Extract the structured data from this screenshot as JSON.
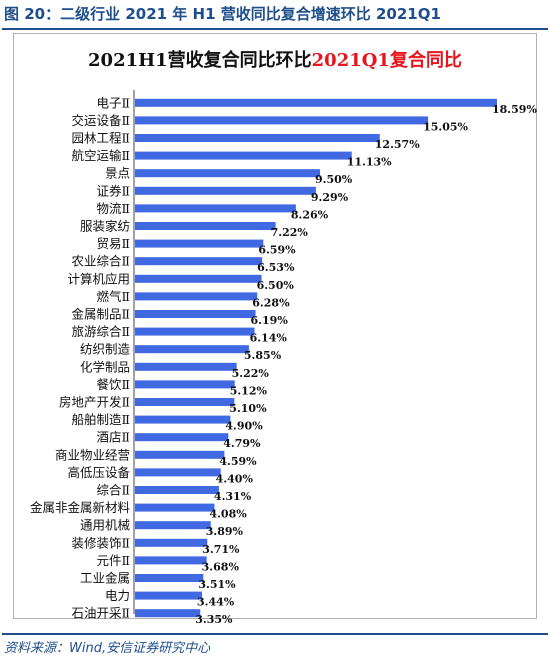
{
  "figure_heading": "图 20：二级行业 2021 年 H1 营收同比复合增速环比 2021Q1",
  "source_note": "资料来源：Wind,安信证券研究中心",
  "colors": {
    "bar": "#4169e1",
    "heading": "#1f4e8c",
    "title_highlight": "#e8141c"
  },
  "chart_data": {
    "type": "bar",
    "orientation": "horizontal",
    "title_part1": "2021H1营收复合同比环比",
    "title_part2": "2021Q1复合同比",
    "categories": [
      "电子Ⅱ",
      "交运设备Ⅱ",
      "园林工程Ⅱ",
      "航空运输Ⅱ",
      "景点",
      "证券Ⅱ",
      "物流Ⅱ",
      "服装家纺",
      "贸易Ⅱ",
      "农业综合Ⅱ",
      "计算机应用",
      "燃气Ⅱ",
      "金属制品Ⅱ",
      "旅游综合Ⅱ",
      "纺织制造",
      "化学制品",
      "餐饮Ⅱ",
      "房地产开发Ⅱ",
      "船舶制造Ⅱ",
      "酒店Ⅱ",
      "商业物业经营",
      "高低压设备",
      "综合Ⅱ",
      "金属非金属新材料",
      "通用机械",
      "装修装饰Ⅱ",
      "元件Ⅱ",
      "工业金属",
      "电力",
      "石油开采Ⅱ"
    ],
    "values": [
      18.59,
      15.05,
      12.57,
      11.13,
      9.5,
      9.29,
      8.26,
      7.22,
      6.59,
      6.53,
      6.5,
      6.28,
      6.19,
      6.14,
      5.85,
      5.22,
      5.12,
      5.1,
      4.9,
      4.79,
      4.59,
      4.4,
      4.31,
      4.08,
      3.89,
      3.71,
      3.68,
      3.51,
      3.44,
      3.35
    ],
    "value_labels": [
      "18.59%",
      "15.05%",
      "12.57%",
      "11.13%",
      "9.50%",
      "9.29%",
      "8.26%",
      "7.22%",
      "6.59%",
      "6.53%",
      "6.50%",
      "6.28%",
      "6.19%",
      "6.14%",
      "5.85%",
      "5.22%",
      "5.12%",
      "5.10%",
      "4.90%",
      "4.79%",
      "4.59%",
      "4.40%",
      "4.31%",
      "4.08%",
      "3.89%",
      "3.71%",
      "3.68%",
      "3.51%",
      "3.44%",
      "3.35%"
    ],
    "xlim": [
      0,
      18.59
    ],
    "grid": false,
    "legend": "none"
  }
}
